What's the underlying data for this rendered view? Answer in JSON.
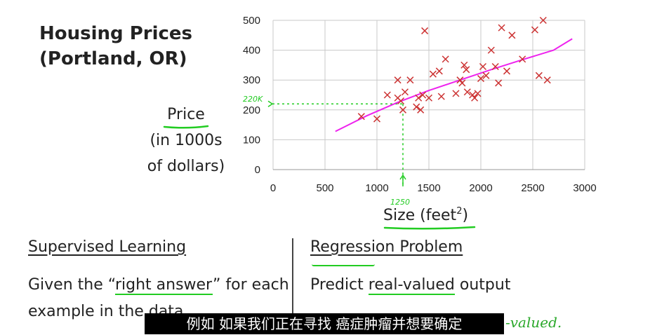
{
  "slide": {
    "title_line1": "Housing Prices",
    "title_line2": "(Portland, OR)",
    "ylabel_line1": "Price",
    "ylabel_line2": "(in 1000s",
    "ylabel_line3": "of dollars)",
    "xlabel": "Size (feet",
    "xlabel_sup": "2",
    "xlabel_close": ")"
  },
  "annotations": {
    "price_mark": "220K",
    "size_mark": "1250",
    "handwritten_note": "-valued."
  },
  "left_section": {
    "heading": "Supervised Learning",
    "body_part1": "Given the “",
    "body_highlight": "right answer",
    "body_part2": "” for each example in the data."
  },
  "right_section": {
    "heading": "Regression Problem",
    "body_part1": "Predict ",
    "body_highlight": "real-valued",
    "body_part2": " output"
  },
  "subtitle": "例如 如果我们正在寻找 癌症肿瘤并想要确定",
  "colors": {
    "points": "#cc3333",
    "fit_line": "#ee22ee",
    "annotation": "#22cc22"
  },
  "chart_data": {
    "type": "scatter",
    "title": "Housing Prices (Portland, OR)",
    "xlabel": "Size (feet²)",
    "ylabel": "Price (in 1000s of dollars)",
    "xlim": [
      0,
      3000
    ],
    "ylim": [
      0,
      500
    ],
    "xticks": [
      0,
      500,
      1000,
      1500,
      2000,
      2500,
      3000
    ],
    "yticks": [
      0,
      100,
      200,
      300,
      400,
      500
    ],
    "grid": true,
    "series": [
      {
        "name": "houses",
        "marker": "x",
        "points": [
          [
            850,
            178
          ],
          [
            1000,
            170
          ],
          [
            1100,
            250
          ],
          [
            1200,
            300
          ],
          [
            1200,
            240
          ],
          [
            1230,
            230
          ],
          [
            1250,
            200
          ],
          [
            1270,
            260
          ],
          [
            1320,
            300
          ],
          [
            1380,
            210
          ],
          [
            1400,
            240
          ],
          [
            1420,
            200
          ],
          [
            1440,
            250
          ],
          [
            1460,
            465
          ],
          [
            1500,
            240
          ],
          [
            1540,
            320
          ],
          [
            1600,
            330
          ],
          [
            1620,
            245
          ],
          [
            1660,
            370
          ],
          [
            1760,
            255
          ],
          [
            1800,
            300
          ],
          [
            1820,
            290
          ],
          [
            1840,
            350
          ],
          [
            1860,
            335
          ],
          [
            1870,
            260
          ],
          [
            1920,
            250
          ],
          [
            1940,
            240
          ],
          [
            1970,
            255
          ],
          [
            2000,
            305
          ],
          [
            2020,
            345
          ],
          [
            2050,
            315
          ],
          [
            2100,
            400
          ],
          [
            2140,
            345
          ],
          [
            2170,
            290
          ],
          [
            2200,
            475
          ],
          [
            2250,
            330
          ],
          [
            2300,
            450
          ],
          [
            2400,
            370
          ],
          [
            2520,
            468
          ],
          [
            2560,
            315
          ],
          [
            2600,
            500
          ],
          [
            2640,
            300
          ]
        ]
      },
      {
        "name": "fit",
        "type": "line",
        "x": [
          600,
          900,
          1200,
          1500,
          1800,
          2100,
          2400,
          2700,
          2880
        ],
        "y": [
          128,
          180,
          225,
          265,
          300,
          335,
          368,
          400,
          438
        ]
      }
    ],
    "marker_x": 1250,
    "marker_y": 220
  }
}
